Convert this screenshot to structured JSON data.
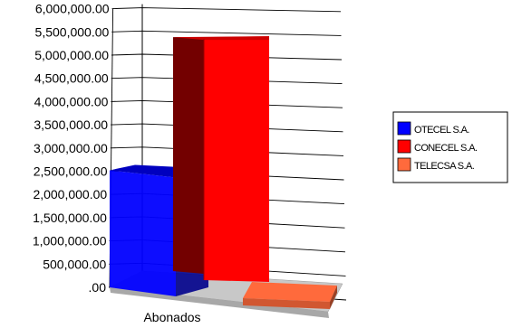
{
  "chart_data": {
    "type": "bar",
    "title": "",
    "xlabel": "",
    "ylabel": "",
    "categories": [
      "Abonados"
    ],
    "series": [
      {
        "name": "OTECEL S.A.",
        "values": [
          2520000
        ]
      },
      {
        "name": "CONECEL S.A.",
        "values": [
          5620000
        ]
      },
      {
        "name": "TELECSA S.A.",
        "values": [
          60000
        ]
      }
    ],
    "ylim": [
      0,
      6000000
    ],
    "ytick_labels": [
      ".00",
      "500,000.00",
      "1,000,000.00",
      "1,500,000.00",
      "2,000,000.00",
      "2,500,000.00",
      "3,000,000.00",
      "3,500,000.00",
      "4,000,000.00",
      "4,500,000.00",
      "5,000,000.00",
      "5,500,000.00",
      "6,000,000.00"
    ],
    "grid": true,
    "legend_position": "right",
    "three_d": true,
    "colors": [
      "#0000ff",
      "#ff0000",
      "#ff6a3c"
    ]
  }
}
